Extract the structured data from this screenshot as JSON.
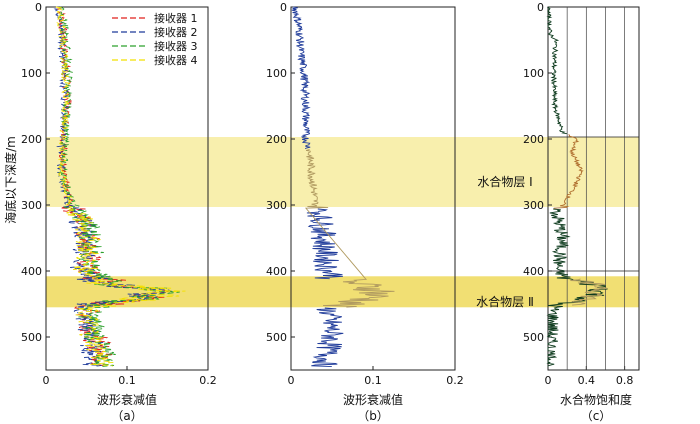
{
  "chart_data": [
    {
      "id": "a",
      "type": "line",
      "panel_label": "（a）",
      "xlabel": "波形衰减值",
      "ylabel": "海底以下深度/m",
      "xlim": [
        0,
        0.2
      ],
      "ylim": [
        0,
        550
      ],
      "y_inverted": true,
      "x_ticks": [
        "0",
        "0.1",
        "0.2"
      ],
      "y_ticks": [
        "0",
        "100",
        "200",
        "300",
        "400",
        "500"
      ],
      "legend": {
        "position": "top-right",
        "entries": [
          "接收器 1",
          "接收器 2",
          "接收器 3",
          "接收器 4"
        ]
      },
      "series": [
        {
          "name": "接收器 1",
          "color": "#e0201c",
          "dash": "6,3",
          "depth": [
            0,
            50,
            100,
            150,
            200,
            250,
            300,
            330,
            360,
            400,
            420,
            430,
            440,
            455,
            480,
            500,
            530,
            545
          ],
          "values": [
            0.018,
            0.022,
            0.025,
            0.027,
            0.022,
            0.02,
            0.03,
            0.05,
            0.055,
            0.05,
            0.08,
            0.15,
            0.12,
            0.05,
            0.055,
            0.06,
            0.07,
            0.07
          ]
        },
        {
          "name": "接收器 2",
          "color": "#1f3b9a",
          "dash": "6,3",
          "depth": [
            0,
            50,
            100,
            150,
            200,
            250,
            300,
            330,
            360,
            400,
            420,
            430,
            440,
            455,
            480,
            500,
            530,
            545
          ],
          "values": [
            0.015,
            0.02,
            0.022,
            0.024,
            0.02,
            0.018,
            0.028,
            0.045,
            0.05,
            0.045,
            0.075,
            0.14,
            0.11,
            0.045,
            0.05,
            0.055,
            0.06,
            0.06
          ]
        },
        {
          "name": "接收器 3",
          "color": "#2ca02c",
          "dash": "6,3",
          "depth": [
            0,
            50,
            100,
            150,
            200,
            250,
            300,
            330,
            360,
            400,
            420,
            430,
            440,
            455,
            480,
            500,
            530,
            545
          ],
          "values": [
            0.02,
            0.024,
            0.028,
            0.026,
            0.024,
            0.021,
            0.032,
            0.052,
            0.058,
            0.052,
            0.085,
            0.155,
            0.125,
            0.052,
            0.058,
            0.062,
            0.072,
            0.072
          ]
        },
        {
          "name": "接收器 4",
          "color": "#f2e000",
          "dash": "6,3",
          "depth": [
            0,
            50,
            100,
            150,
            200,
            250,
            300,
            330,
            360,
            400,
            420,
            430,
            440,
            455,
            480,
            500,
            530,
            545
          ],
          "values": [
            0.017,
            0.021,
            0.024,
            0.025,
            0.021,
            0.019,
            0.029,
            0.048,
            0.053,
            0.048,
            0.082,
            0.16,
            0.13,
            0.048,
            0.053,
            0.058,
            0.068,
            0.068
          ]
        }
      ]
    },
    {
      "id": "b",
      "type": "line",
      "panel_label": "（b）",
      "xlabel": "波形衰减值",
      "xlim": [
        0,
        0.2
      ],
      "ylim": [
        0,
        550
      ],
      "y_inverted": true,
      "x_ticks": [
        "0",
        "0.1",
        "0.2"
      ],
      "y_ticks": [
        "0",
        "100",
        "200",
        "300",
        "400",
        "500"
      ],
      "series": [
        {
          "color": "#1f3b9a",
          "depth": [
            0,
            30,
            70,
            100,
            150,
            200,
            215,
            250,
            300,
            310,
            350,
            380,
            400,
            412,
            430,
            445,
            455,
            480,
            500,
            520,
            545
          ],
          "values": [
            0.005,
            0.01,
            0.012,
            0.016,
            0.018,
            0.018,
            0.022,
            0.025,
            0.03,
            0.035,
            0.04,
            0.042,
            0.045,
            0.06,
            0.11,
            0.09,
            0.045,
            0.048,
            0.05,
            0.045,
            0.04
          ],
          "highlight_color": "#b09a60",
          "highlight_ranges": [
            [
              215,
              305
            ],
            [
              412,
              455
            ]
          ]
        }
      ]
    },
    {
      "id": "c",
      "type": "line",
      "panel_label": "（c）",
      "xlabel": "水合物饱和度",
      "xlim": [
        0,
        0.95
      ],
      "ylim": [
        0,
        550
      ],
      "y_inverted": true,
      "x_ticks": [
        "0",
        "0.4",
        "0.8"
      ],
      "x_minor_ticks": [
        0.2,
        0.6
      ],
      "y_ticks": [
        "0",
        "100",
        "200",
        "300",
        "400",
        "500"
      ],
      "series": [
        {
          "color": "#0e3b1e",
          "depth": [
            0,
            40,
            50,
            100,
            150,
            190,
            200,
            220,
            250,
            280,
            300,
            310,
            330,
            350,
            380,
            400,
            412,
            425,
            440,
            452,
            470,
            500,
            540,
            545
          ],
          "values": [
            0.0,
            0.02,
            0.08,
            0.06,
            0.07,
            0.15,
            0.3,
            0.25,
            0.35,
            0.25,
            0.15,
            0.08,
            0.12,
            0.15,
            0.12,
            0.1,
            0.2,
            0.6,
            0.45,
            0.05,
            0.05,
            0.03,
            0.02,
            0.0
          ],
          "highlight_color": "#b07030",
          "highlight_ranges": [
            [
              192,
              305
            ]
          ]
        },
        {
          "color": "#b09a60",
          "depth": [
            412,
            425,
            440,
            452
          ],
          "values": [
            0.2,
            0.6,
            0.45,
            0.2
          ]
        }
      ]
    }
  ],
  "zones": [
    {
      "label": "水合物层 Ⅰ",
      "depth": [
        197,
        303
      ],
      "color": "#f7ec9f"
    },
    {
      "label": "水合物层 Ⅱ",
      "depth": [
        408,
        455
      ],
      "color": "#efd95a"
    }
  ]
}
